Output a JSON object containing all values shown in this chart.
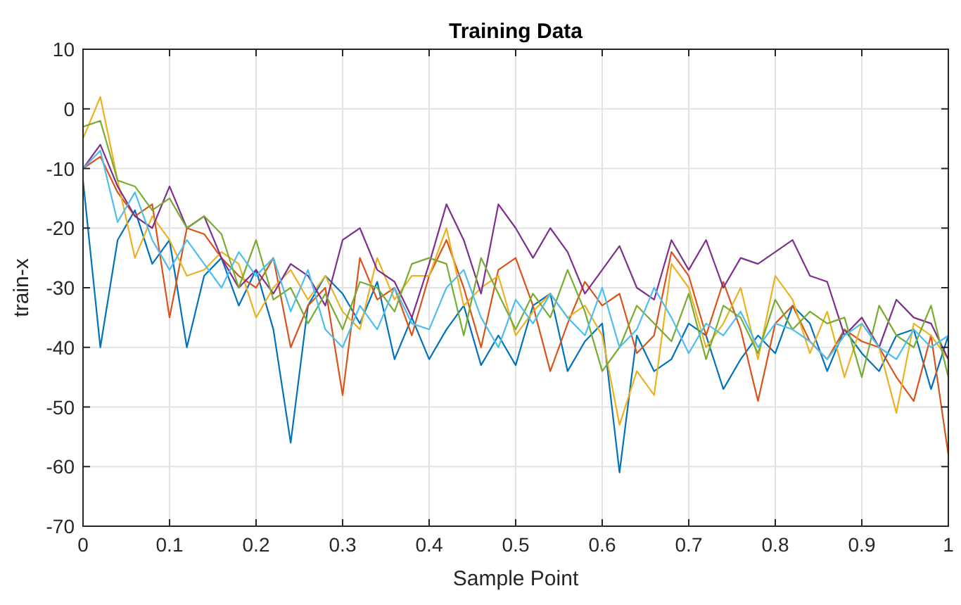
{
  "chart_data": {
    "type": "line",
    "title": "Training Data",
    "xlabel": "Sample Point",
    "ylabel": "train-x",
    "x": [
      0,
      0.02,
      0.04,
      0.06,
      0.08,
      0.1,
      0.12,
      0.14,
      0.16,
      0.18,
      0.2,
      0.22,
      0.24,
      0.26,
      0.28,
      0.3,
      0.32,
      0.34,
      0.36,
      0.38,
      0.4,
      0.42,
      0.44,
      0.46,
      0.48,
      0.5,
      0.52,
      0.54,
      0.56,
      0.58,
      0.6,
      0.62,
      0.64,
      0.66,
      0.68,
      0.7,
      0.72,
      0.74,
      0.76,
      0.78,
      0.8,
      0.82,
      0.84,
      0.86,
      0.88,
      0.9,
      0.92,
      0.94,
      0.96,
      0.98,
      1
    ],
    "series": [
      {
        "color": "#0072bd",
        "values": [
          -12,
          -40,
          -22,
          -17,
          -26,
          -22,
          -40,
          -28,
          -25,
          -33,
          -27,
          -37,
          -56,
          -33,
          -28,
          -31,
          -36,
          -29,
          -42,
          -35,
          -42,
          -37,
          -33,
          -43,
          -38,
          -43,
          -33,
          -31,
          -44,
          -39,
          -36,
          -61,
          -38,
          -44,
          -42,
          -36,
          -38,
          -47,
          -42,
          -38,
          -41,
          -33,
          -36,
          -44,
          -37,
          -41,
          -44,
          -38,
          -37,
          -47,
          -38
        ]
      },
      {
        "color": "#d95319",
        "values": [
          -10,
          -8,
          -14,
          -18,
          -16,
          -35,
          -20,
          -21,
          -25,
          -28,
          -30,
          -25,
          -40,
          -33,
          -30,
          -48,
          -25,
          -32,
          -30,
          -38,
          -28,
          -22,
          -30,
          -40,
          -27,
          -25,
          -33,
          -44,
          -36,
          -29,
          -33,
          -31,
          -41,
          -38,
          -24,
          -28,
          -38,
          -29,
          -37,
          -49,
          -36,
          -33,
          -39,
          -42,
          -37,
          -39,
          -40,
          -45,
          -49,
          -38,
          -58
        ]
      },
      {
        "color": "#edb120",
        "values": [
          -5,
          2,
          -12,
          -25,
          -18,
          -22,
          -28,
          -27,
          -24,
          -26,
          -35,
          -30,
          -27,
          -32,
          -28,
          -34,
          -37,
          -25,
          -32,
          -28,
          -28,
          -20,
          -33,
          -30,
          -28,
          -38,
          -34,
          -31,
          -35,
          -33,
          -38,
          -53,
          -44,
          -48,
          -26,
          -30,
          -40,
          -36,
          -30,
          -42,
          -28,
          -32,
          -41,
          -34,
          -45,
          -36,
          -40,
          -51,
          -36,
          -38,
          -42
        ]
      },
      {
        "color": "#7e2f8e",
        "values": [
          -10,
          -6,
          -13,
          -18,
          -20,
          -13,
          -20,
          -18,
          -25,
          -30,
          -27,
          -31,
          -26,
          -28,
          -33,
          -22,
          -20,
          -27,
          -29,
          -35,
          -26,
          -16,
          -22,
          -31,
          -16,
          -20,
          -25,
          -20,
          -24,
          -31,
          -27,
          -23,
          -30,
          -32,
          -22,
          -27,
          -22,
          -30,
          -25,
          -26,
          -24,
          -22,
          -28,
          -29,
          -38,
          -35,
          -40,
          -32,
          -35,
          -36,
          -42
        ]
      },
      {
        "color": "#77ac30",
        "values": [
          -3,
          -2,
          -12,
          -13,
          -17,
          -15,
          -20,
          -18,
          -21,
          -30,
          -22,
          -32,
          -30,
          -36,
          -31,
          -37,
          -29,
          -30,
          -34,
          -26,
          -25,
          -26,
          -38,
          -25,
          -31,
          -37,
          -31,
          -35,
          -27,
          -34,
          -44,
          -40,
          -33,
          -36,
          -39,
          -31,
          -42,
          -33,
          -35,
          -41,
          -32,
          -37,
          -34,
          -36,
          -35,
          -45,
          -33,
          -38,
          -40,
          -33,
          -45
        ]
      },
      {
        "color": "#4dbeee",
        "values": [
          -10,
          -7,
          -19,
          -14,
          -22,
          -27,
          -22,
          -26,
          -30,
          -24,
          -28,
          -25,
          -34,
          -27,
          -37,
          -40,
          -33,
          -37,
          -30,
          -36,
          -37,
          -30,
          -27,
          -35,
          -40,
          -32,
          -36,
          -31,
          -35,
          -38,
          -30,
          -40,
          -37,
          -30,
          -35,
          -41,
          -36,
          -38,
          -34,
          -40,
          -36,
          -37,
          -39,
          -42,
          -38,
          -36,
          -40,
          -42,
          -37,
          -40,
          -38
        ]
      }
    ],
    "xlim": [
      0,
      1
    ],
    "xticks": [
      0,
      0.1,
      0.2,
      0.3,
      0.4,
      0.5,
      0.6,
      0.7,
      0.8,
      0.9,
      1
    ],
    "ylim": [
      -70,
      10
    ],
    "yticks": [
      -70,
      -60,
      -50,
      -40,
      -30,
      -20,
      -10,
      0,
      10
    ],
    "grid": true,
    "marker": "none",
    "line_style": "solid"
  }
}
